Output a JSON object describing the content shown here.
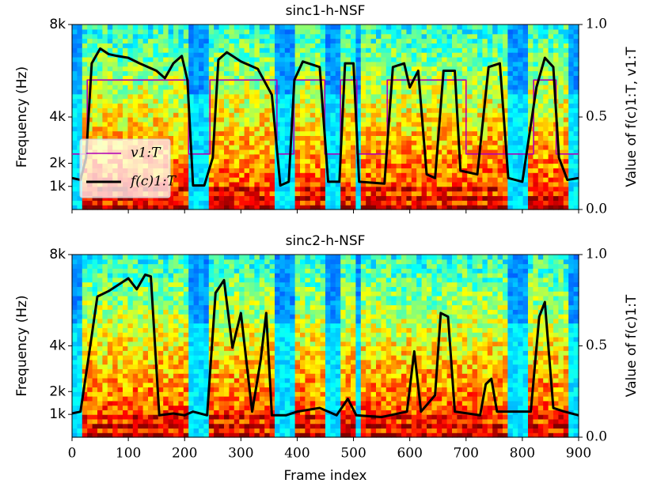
{
  "chart_data": [
    {
      "type": "line",
      "title": "sinc1-h-NSF",
      "ylabel": "Frequency (Hz)",
      "y2label": "Value of f(c)1:T, v1:T",
      "xlim": [
        0,
        900
      ],
      "xticks": [
        0,
        100,
        200,
        300,
        400,
        500,
        600,
        700,
        800,
        900
      ],
      "ylim": [
        0,
        8000
      ],
      "yticks": [
        {
          "value": 1000,
          "label": "1k"
        },
        {
          "value": 2000,
          "label": "2k"
        },
        {
          "value": 4000,
          "label": "4k"
        },
        {
          "value": 8000,
          "label": "8k"
        }
      ],
      "y2lim": [
        0,
        1
      ],
      "y2ticks": [
        {
          "value": 0,
          "label": "0.0"
        },
        {
          "value": 0.5,
          "label": "0.5"
        },
        {
          "value": 1,
          "label": "1.0"
        }
      ],
      "legend": "lower left",
      "series": [
        {
          "name": "v1:T",
          "color": "#b000b5",
          "axis": "y2",
          "x": [
            0,
            27,
            27,
            207,
            207,
            245,
            245,
            364,
            364,
            394,
            394,
            449,
            449,
            477,
            477,
            506,
            506,
            560,
            560,
            700,
            700,
            820,
            820,
            860,
            860,
            900
          ],
          "values": [
            0.3,
            0.3,
            0.7,
            0.7,
            0.3,
            0.3,
            0.7,
            0.7,
            0.3,
            0.3,
            0.7,
            0.7,
            0.3,
            0.3,
            0.7,
            0.7,
            0.3,
            0.3,
            0.7,
            0.7,
            0.3,
            0.3,
            0.7,
            0.7,
            0.3,
            0.3
          ]
        },
        {
          "name": "f(c)1:T",
          "color": "#000000",
          "axis": "y2",
          "x": [
            0,
            15,
            25,
            35,
            50,
            65,
            80,
            100,
            120,
            150,
            165,
            180,
            195,
            205,
            215,
            235,
            250,
            260,
            275,
            300,
            330,
            355,
            370,
            385,
            395,
            410,
            440,
            455,
            475,
            485,
            500,
            510,
            555,
            570,
            590,
            600,
            615,
            630,
            645,
            660,
            680,
            690,
            720,
            740,
            760,
            775,
            800,
            825,
            840,
            855,
            865,
            880,
            900
          ],
          "values": [
            0.17,
            0.16,
            0.28,
            0.79,
            0.87,
            0.84,
            0.83,
            0.82,
            0.79,
            0.75,
            0.71,
            0.79,
            0.83,
            0.7,
            0.13,
            0.13,
            0.28,
            0.81,
            0.85,
            0.8,
            0.76,
            0.62,
            0.13,
            0.15,
            0.7,
            0.8,
            0.77,
            0.15,
            0.15,
            0.79,
            0.79,
            0.15,
            0.14,
            0.77,
            0.79,
            0.66,
            0.75,
            0.19,
            0.17,
            0.75,
            0.75,
            0.21,
            0.19,
            0.77,
            0.79,
            0.17,
            0.15,
            0.66,
            0.82,
            0.77,
            0.28,
            0.16,
            0.17
          ]
        }
      ]
    },
    {
      "type": "line",
      "title": "sinc2-h-NSF",
      "ylabel": "Frequency (Hz)",
      "y2label": "Value of f(c)1:T",
      "xlabel": "Frame index",
      "xlim": [
        0,
        900
      ],
      "xticks": [
        0,
        100,
        200,
        300,
        400,
        500,
        600,
        700,
        800,
        900
      ],
      "ylim": [
        0,
        8000
      ],
      "yticks": [
        {
          "value": 1000,
          "label": "1k"
        },
        {
          "value": 2000,
          "label": "2k"
        },
        {
          "value": 4000,
          "label": "4k"
        },
        {
          "value": 8000,
          "label": "8k"
        }
      ],
      "y2lim": [
        0,
        1
      ],
      "y2ticks": [
        {
          "value": 0,
          "label": "0.0"
        },
        {
          "value": 0.5,
          "label": "0.5"
        },
        {
          "value": 1,
          "label": "1.0"
        }
      ],
      "series": [
        {
          "color": "#000000",
          "axis": "y2",
          "x": [
            0,
            15,
            30,
            45,
            65,
            85,
            100,
            115,
            130,
            140,
            155,
            180,
            200,
            215,
            240,
            255,
            270,
            285,
            300,
            320,
            335,
            345,
            355,
            380,
            400,
            440,
            470,
            490,
            505,
            550,
            595,
            608,
            620,
            645,
            655,
            668,
            680,
            725,
            735,
            745,
            755,
            815,
            830,
            840,
            855,
            875,
            900
          ],
          "values": [
            0.13,
            0.14,
            0.45,
            0.77,
            0.8,
            0.84,
            0.87,
            0.81,
            0.89,
            0.88,
            0.12,
            0.13,
            0.12,
            0.14,
            0.12,
            0.79,
            0.86,
            0.49,
            0.68,
            0.14,
            0.42,
            0.68,
            0.12,
            0.12,
            0.14,
            0.16,
            0.12,
            0.21,
            0.12,
            0.11,
            0.14,
            0.47,
            0.14,
            0.23,
            0.68,
            0.66,
            0.14,
            0.12,
            0.29,
            0.32,
            0.14,
            0.14,
            0.66,
            0.74,
            0.16,
            0.14,
            0.12
          ]
        }
      ]
    }
  ]
}
